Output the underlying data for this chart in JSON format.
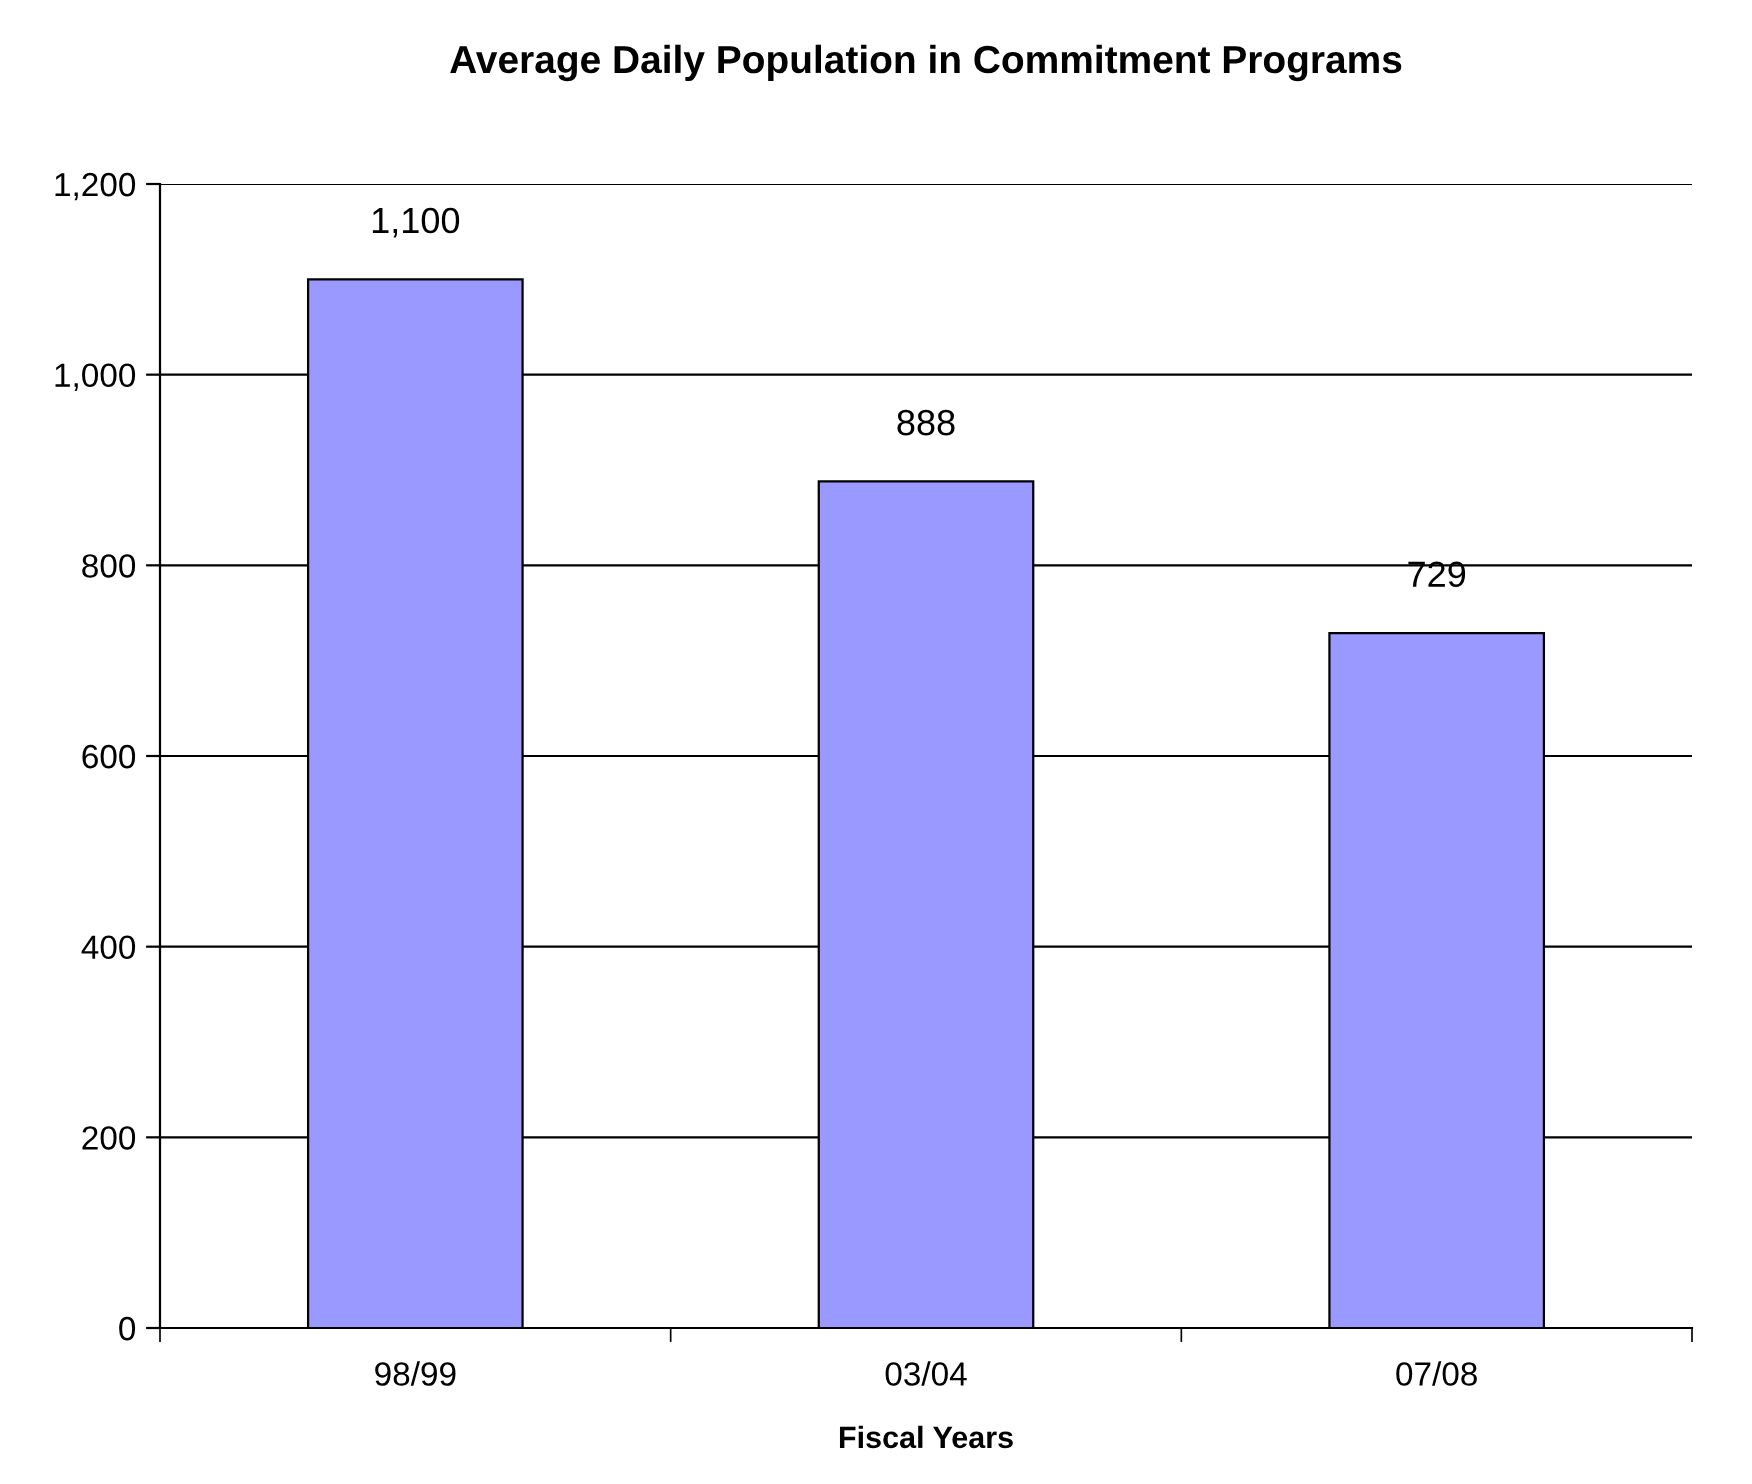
{
  "chart_data": {
    "type": "bar",
    "title": "Average Daily Population in Commitment Programs",
    "xlabel": "Fiscal Years",
    "categories": [
      "98/99",
      "03/04",
      "07/08"
    ],
    "values": [
      1100,
      888,
      729
    ],
    "value_labels": [
      "1,100",
      "888",
      "729"
    ],
    "color": "#9999ff",
    "ylim": [
      0,
      1200
    ],
    "yticks": [
      0,
      200,
      400,
      600,
      800,
      {
        "value": 1000,
        "label": "1,000"
      },
      {
        "value": 1200,
        "label": "1,200"
      }
    ],
    "grid": "y",
    "legend": false
  }
}
